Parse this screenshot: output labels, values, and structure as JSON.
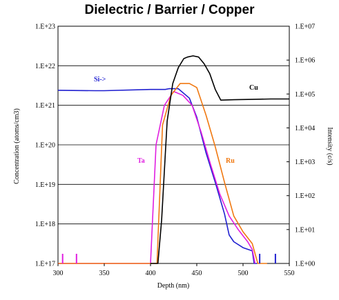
{
  "chart_data": {
    "type": "line",
    "title": "Dielectric  /  Barrier / Copper",
    "xlabel": "Depth (nm)",
    "ylabel_left": "Concentration (atoms/cm3)",
    "ylabel_right": "Intensity (c/s)",
    "xlim": [
      300,
      550
    ],
    "x_ticks": [
      "300",
      "350",
      "400",
      "450",
      "500",
      "550"
    ],
    "y_left_exp_range": [
      17,
      23
    ],
    "y_left_ticks": [
      "1.E+17",
      "1.E+18",
      "1.E+19",
      "1.E+20",
      "1.E+21",
      "1.E+22",
      "1.E+23"
    ],
    "y_right_ticks": [
      "1.E+00",
      "1.E+01",
      "1.E+02",
      "1.E+03",
      "1.E+04",
      "1.E+05",
      "1.E+06",
      "1.E+07"
    ],
    "grid": "horizontal",
    "series": [
      {
        "name": "Si->",
        "color": "#1f1fd0",
        "x": [
          300,
          340,
          350,
          400,
          416,
          420,
          430,
          442,
          450,
          460,
          470,
          480,
          485,
          490,
          500,
          510,
          512,
          515
        ],
        "log10_conc": [
          21.38,
          21.37,
          21.37,
          21.4,
          21.4,
          21.42,
          21.42,
          21.18,
          20.7,
          19.8,
          19.05,
          18.25,
          17.72,
          17.55,
          17.4,
          17.32,
          17.0,
          17.0
        ]
      },
      {
        "name": "Ta",
        "color": "#e01ee0",
        "x": [
          300,
          320,
          398,
          400,
          406,
          415,
          425,
          435,
          445,
          455,
          465,
          475,
          485,
          495,
          505,
          510,
          513
        ],
        "log10_conc": [
          17.0,
          17.0,
          17.0,
          17.0,
          20.0,
          21.0,
          21.35,
          21.25,
          21.0,
          20.3,
          19.5,
          18.75,
          18.2,
          17.85,
          17.55,
          17.35,
          17.0
        ]
      },
      {
        "name": "Ru",
        "color": "#f07810",
        "x": [
          300,
          400,
          407,
          413,
          422,
          432,
          442,
          450,
          460,
          470,
          480,
          490,
          500,
          510,
          516,
          522,
          526
        ],
        "log10_conc": [
          17.0,
          17.0,
          17.0,
          20.5,
          21.25,
          21.55,
          21.55,
          21.45,
          20.75,
          19.95,
          19.05,
          18.2,
          17.8,
          17.5,
          17.0,
          17.0,
          17.0
        ]
      },
      {
        "name": "Cu",
        "color": "#000000",
        "x": [
          400,
          408,
          412,
          418,
          424,
          430,
          436,
          440,
          446,
          452,
          458,
          464,
          470,
          476,
          490,
          510,
          530,
          550
        ],
        "log10_conc": [
          17.0,
          17.0,
          18.1,
          20.6,
          21.55,
          21.95,
          22.18,
          22.22,
          22.25,
          22.22,
          22.05,
          21.8,
          21.4,
          21.13,
          21.14,
          21.15,
          21.16,
          21.16
        ]
      }
    ]
  }
}
